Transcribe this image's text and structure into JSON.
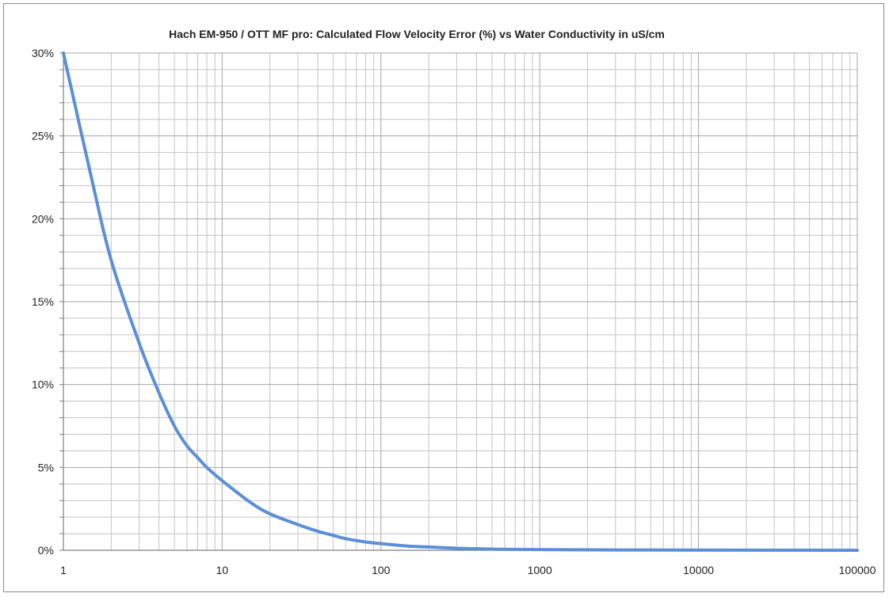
{
  "chart_data": {
    "type": "line",
    "title": "Hach EM-950 / OTT MF pro:  Calculated Flow Velocity Error (%) vs Water Conductivity in uS/cm",
    "xlabel": "",
    "ylabel": "",
    "x_scale": "log",
    "xlim": [
      1,
      100000
    ],
    "ylim": [
      0,
      30
    ],
    "grid": true,
    "legend": "none",
    "x_tick_labels": [
      "1",
      "10",
      "100",
      "1000",
      "10000",
      "100000"
    ],
    "y_tick_labels": [
      "0%",
      "5%",
      "10%",
      "15%",
      "20%",
      "25%",
      "30%"
    ],
    "series": [
      {
        "color": "#5b8fd6",
        "x": [
          1,
          1.5,
          2,
          3,
          4,
          5,
          6,
          7,
          8,
          10,
          15,
          20,
          30,
          40,
          50,
          60,
          80,
          100,
          150,
          200,
          300,
          500,
          1000,
          3000,
          10000,
          100000
        ],
        "y": [
          30.0,
          22.5,
          17.5,
          12.5,
          9.5,
          7.5,
          6.3,
          5.6,
          5.0,
          4.2,
          2.9,
          2.2,
          1.55,
          1.15,
          0.9,
          0.7,
          0.5,
          0.4,
          0.25,
          0.2,
          0.12,
          0.07,
          0.04,
          0.02,
          0.01,
          0.0
        ]
      }
    ]
  }
}
